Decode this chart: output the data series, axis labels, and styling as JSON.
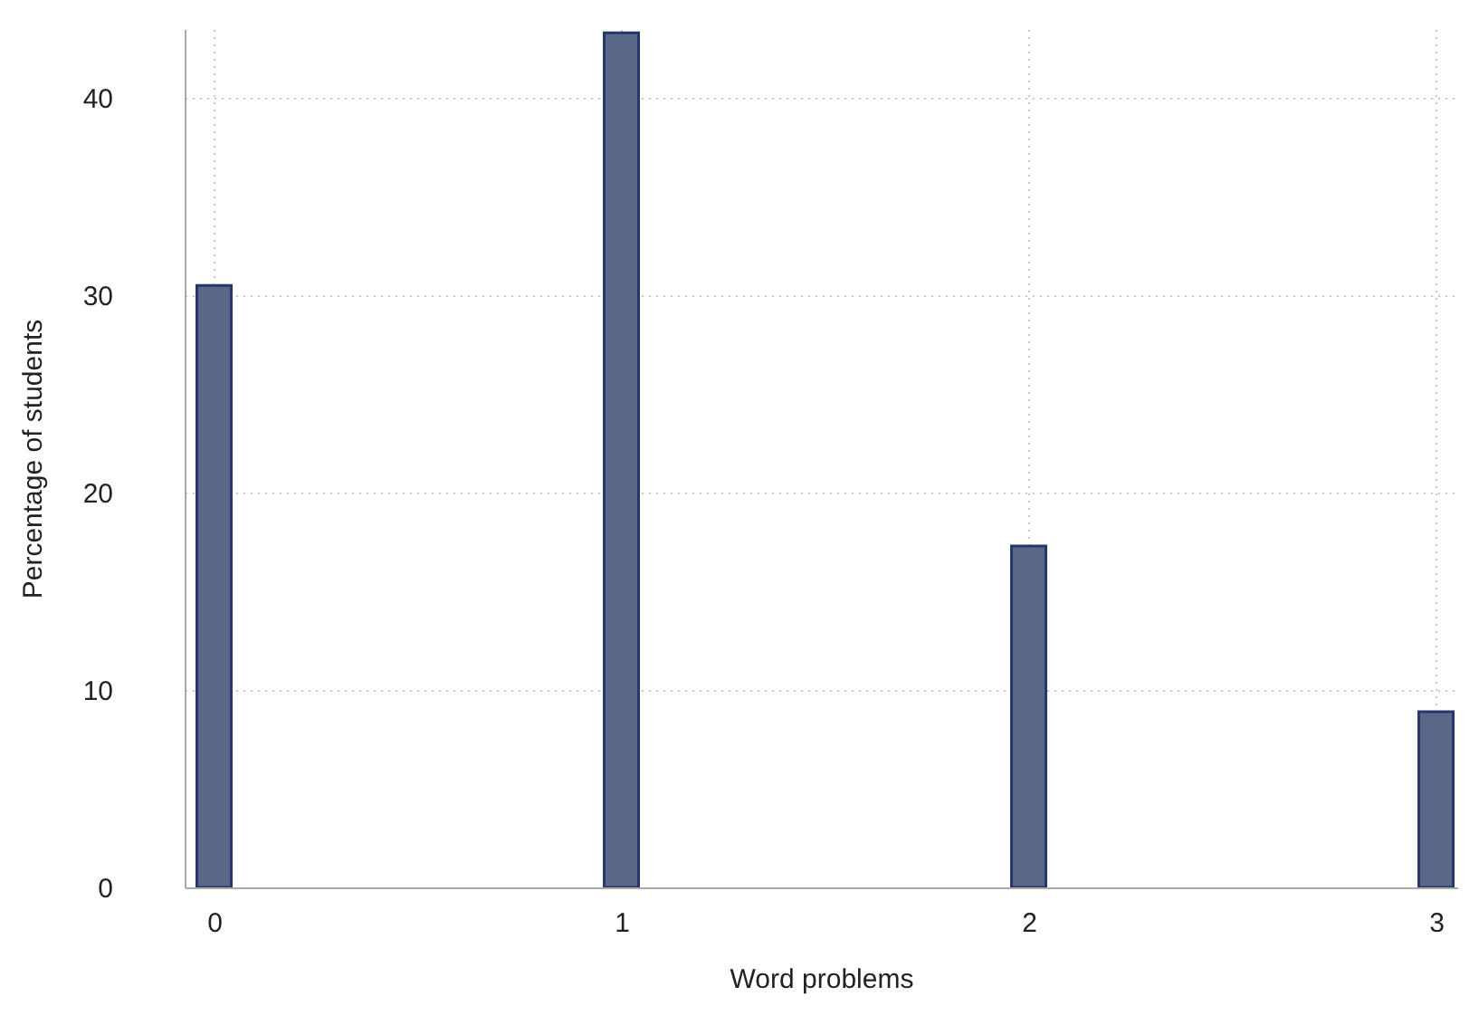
{
  "chart_data": {
    "type": "bar",
    "xlabel": "Word problems",
    "ylabel": "Percentage of students",
    "x": [
      0,
      1,
      2,
      3
    ],
    "values": [
      30.5,
      43.3,
      17.3,
      8.9
    ],
    "color": "#5a6788",
    "xlim": [
      -0.05,
      3.03
    ],
    "xticks": [
      0,
      1,
      2,
      3
    ],
    "ylim": [
      0,
      43.5
    ],
    "yticks": [
      0,
      10,
      20,
      30,
      40
    ],
    "grid": true
  }
}
